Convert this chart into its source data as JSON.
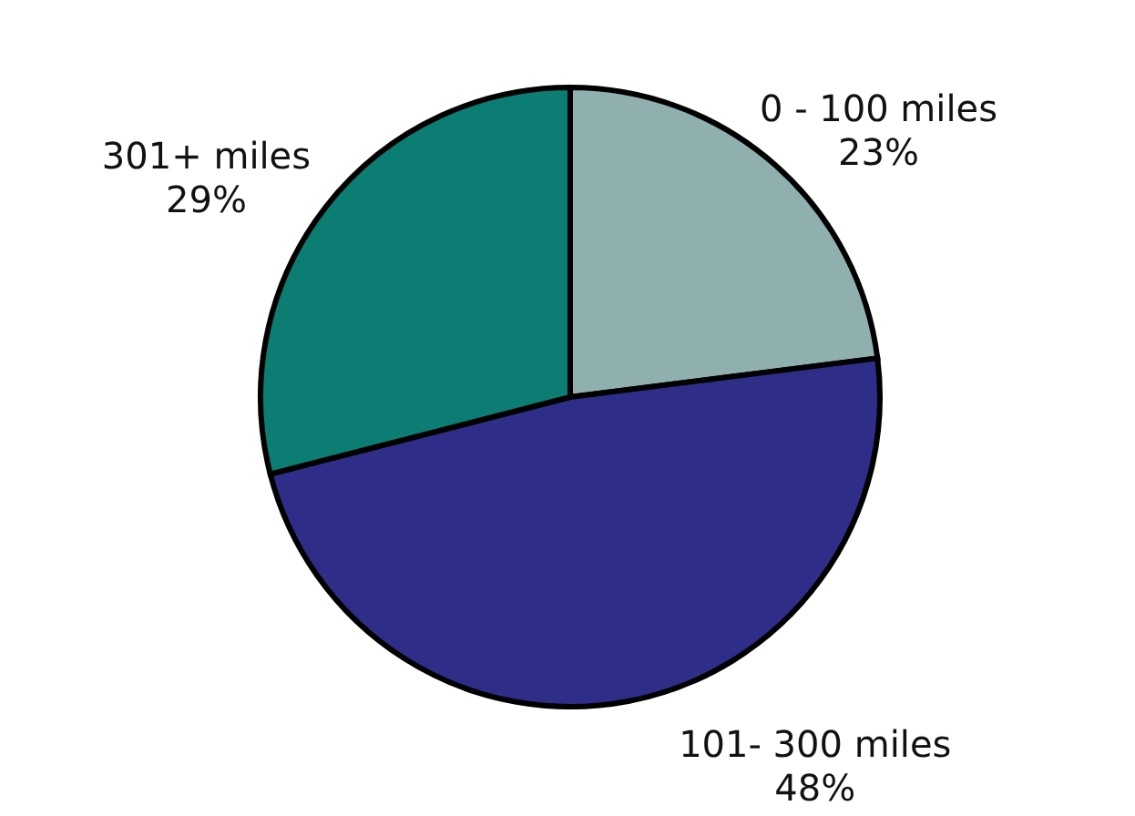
{
  "chart_data": {
    "type": "pie",
    "categories": [
      "0 - 100 miles",
      "101- 300 miles",
      "301+ miles"
    ],
    "values": [
      23,
      48,
      29
    ],
    "value_labels": [
      "23%",
      "48%",
      "29%"
    ],
    "colors": [
      "#8fb0ae",
      "#2e2e88",
      "#0b7d72"
    ],
    "legend": false
  }
}
